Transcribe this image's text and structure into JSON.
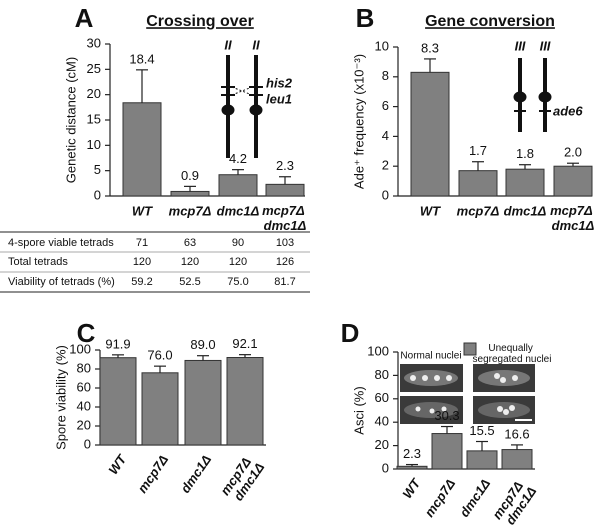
{
  "chart_data": [
    {
      "type": "bar",
      "panel": "A",
      "title": "Crossing over",
      "y_label": "Genetic distance (cM)",
      "categories": [
        "WT",
        "mcp7Δ",
        "dmc1Δ",
        "mcp7Δ dmc1Δ"
      ],
      "series": [
        {
          "color": "#808080",
          "values": [
            18.4,
            0.9,
            4.2,
            2.3
          ],
          "errors": [
            6.5,
            1.0,
            1.0,
            1.5
          ]
        }
      ],
      "ylim": [
        0,
        30
      ],
      "yticks": [
        0,
        5,
        10,
        15,
        20,
        25,
        30
      ],
      "annotations": [
        "II",
        "II",
        "his2",
        "leu1"
      ]
    },
    {
      "type": "bar",
      "panel": "B",
      "title": "Gene conversion",
      "y_label": "Ade⁺ frequency (x10⁻³)",
      "categories": [
        "WT",
        "mcp7Δ",
        "dmc1Δ",
        "mcp7Δ dmc1Δ"
      ],
      "series": [
        {
          "color": "#808080",
          "values": [
            8.3,
            1.7,
            1.8,
            2.0
          ],
          "value_labels": [
            "8.3",
            "1.7",
            "1.8",
            "2.0"
          ],
          "errors": [
            0.9,
            0.6,
            0.3,
            0.2
          ]
        }
      ],
      "ylim": [
        0,
        10
      ],
      "yticks": [
        0,
        2,
        4,
        6,
        8,
        10
      ],
      "annotations": [
        "III",
        "III",
        "ade6"
      ]
    },
    {
      "type": "bar",
      "panel": "C",
      "y_label": "Spore viability (%)",
      "categories": [
        "WT",
        "mcp7Δ",
        "dmc1Δ",
        "mcp7Δ dmc1Δ"
      ],
      "series": [
        {
          "color": "#808080",
          "values": [
            91.9,
            76.0,
            89.0,
            92.1
          ],
          "value_labels": [
            "91.9",
            "76.0",
            "89.0",
            "92.1"
          ],
          "errors": [
            3,
            7,
            5,
            3
          ]
        }
      ],
      "ylim": [
        0,
        100
      ],
      "yticks": [
        0,
        20,
        40,
        60,
        80,
        100
      ]
    },
    {
      "type": "bar",
      "panel": "D",
      "y_label": "Asci (%)",
      "categories": [
        "WT",
        "mcp7Δ",
        "dmc1Δ",
        "mcp7Δ dmc1Δ"
      ],
      "series": [
        {
          "name": "Unequally segregated nuclei",
          "color": "#808080",
          "values": [
            2.3,
            30.3,
            15.5,
            16.6
          ],
          "value_labels": [
            "2.3",
            "30.3",
            "15.5",
            "16.6"
          ],
          "errors": [
            1.5,
            6,
            8,
            4
          ]
        }
      ],
      "ylim": [
        0,
        100
      ],
      "yticks": [
        0,
        20,
        40,
        60,
        80,
        100
      ],
      "annotations": [
        "Normal nuclei"
      ]
    }
  ],
  "table": {
    "rows": [
      [
        "4-spore viable tetrads",
        "71",
        "63",
        "90",
        "103"
      ],
      [
        "Total tetrads",
        "120",
        "120",
        "120",
        "126"
      ],
      [
        "Viability of tetrads (%)",
        "59.2",
        "52.5",
        "75.0",
        "81.7"
      ]
    ]
  }
}
